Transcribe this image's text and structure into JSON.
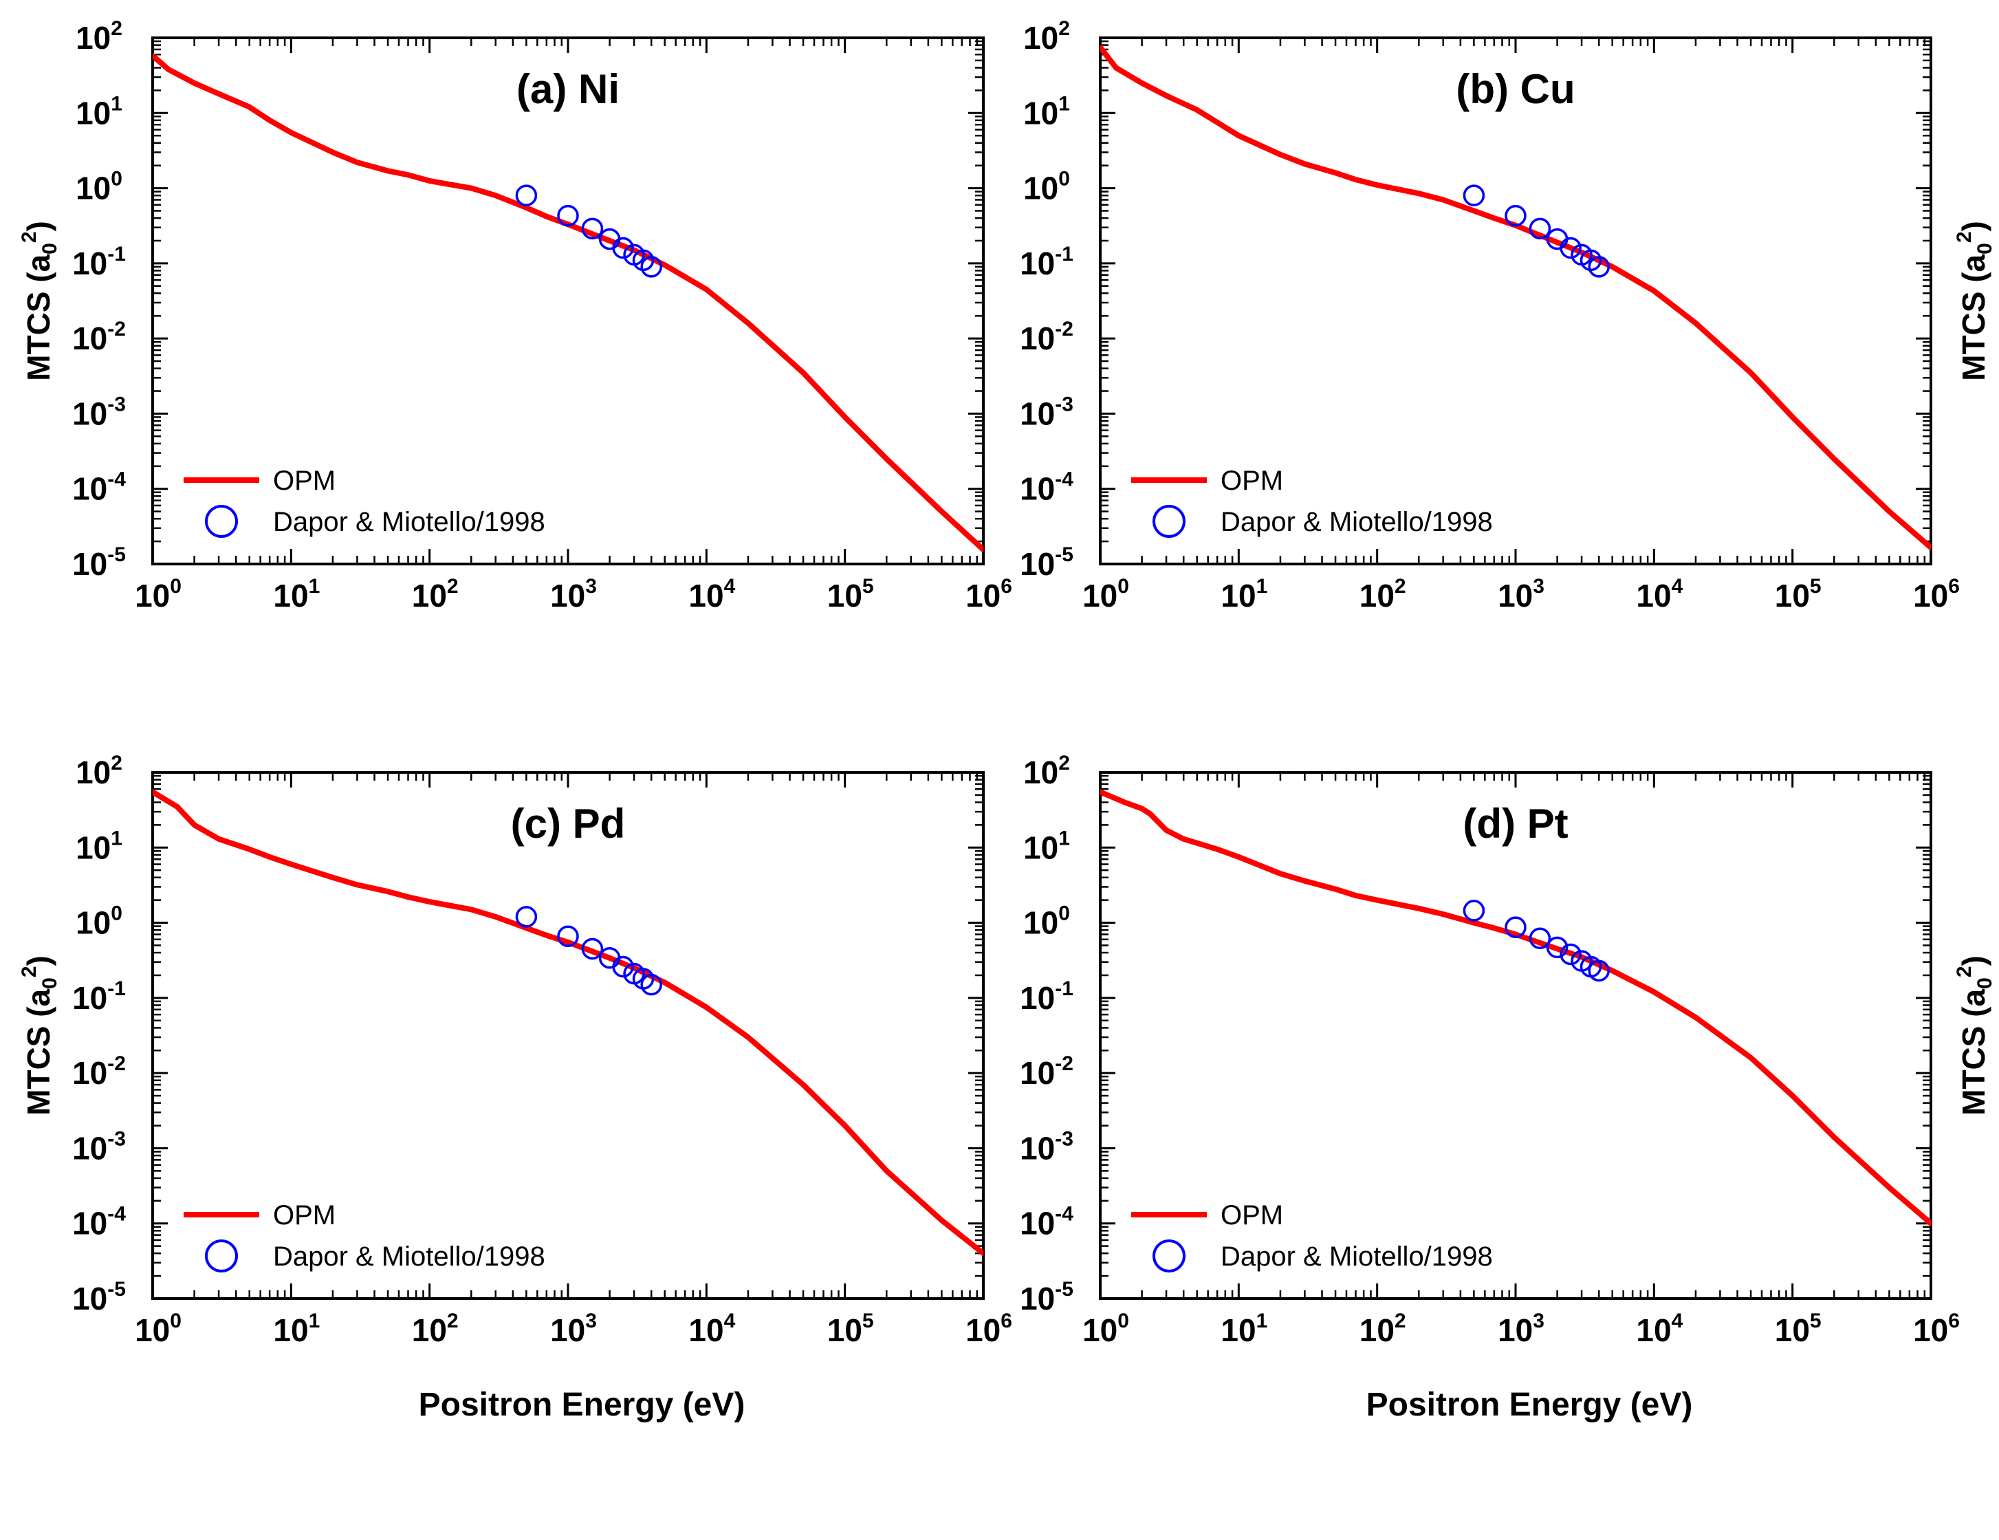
{
  "chart_data": [
    {
      "type": "line",
      "panel": "a",
      "title": "(a) Ni",
      "xlabel": "Positron Energy (eV)",
      "ylabel": "MTCS (a_0^2)",
      "xscale": "log",
      "yscale": "log",
      "xlim": [
        1,
        1000000
      ],
      "ylim": [
        1e-05,
        100
      ],
      "show_xlabel": false,
      "ylabel_side": "left",
      "legend_placement": "lower-left",
      "series": [
        {
          "name": "OPM",
          "style": "line",
          "color": "#ff0000",
          "x": [
            1,
            1.3,
            2,
            3,
            5,
            7,
            10,
            20,
            30,
            50,
            70,
            100,
            200,
            300,
            500,
            700,
            1000,
            2000,
            3000,
            5000,
            10000,
            20000,
            50000,
            100000,
            200000,
            500000,
            1000000
          ],
          "y": [
            58,
            38,
            25,
            18,
            12,
            8,
            5.5,
            3,
            2.2,
            1.7,
            1.5,
            1.25,
            1.0,
            0.8,
            0.55,
            0.42,
            0.33,
            0.2,
            0.15,
            0.095,
            0.045,
            0.016,
            0.0035,
            0.0009,
            0.00025,
            5e-05,
            1.55e-05
          ]
        },
        {
          "name": "Dapor & Miotello/1998",
          "style": "circle",
          "color": "#0000ff",
          "x": [
            500,
            1000,
            1500,
            2000,
            2500,
            3000,
            3500,
            4000
          ],
          "y": [
            0.8,
            0.43,
            0.29,
            0.21,
            0.16,
            0.13,
            0.11,
            0.09
          ]
        }
      ]
    },
    {
      "type": "line",
      "panel": "b",
      "title": "(b) Cu",
      "xlabel": "Positron Energy (eV)",
      "ylabel": "MTCS (a_0^2)",
      "xscale": "log",
      "yscale": "log",
      "xlim": [
        1,
        1000000
      ],
      "ylim": [
        1e-05,
        100
      ],
      "show_xlabel": false,
      "ylabel_side": "right",
      "legend_placement": "lower-left",
      "series": [
        {
          "name": "OPM",
          "style": "line",
          "color": "#ff0000",
          "x": [
            1,
            1.3,
            2,
            3,
            5,
            7,
            10,
            20,
            30,
            50,
            70,
            100,
            200,
            300,
            500,
            700,
            1000,
            2000,
            3000,
            5000,
            10000,
            20000,
            50000,
            100000,
            200000,
            500000,
            1000000
          ],
          "y": [
            75,
            40,
            25,
            17,
            11,
            7.5,
            5.0,
            2.8,
            2.1,
            1.6,
            1.3,
            1.1,
            0.85,
            0.7,
            0.5,
            0.4,
            0.32,
            0.19,
            0.14,
            0.09,
            0.043,
            0.016,
            0.0035,
            0.0009,
            0.00025,
            5e-05,
            1.65e-05
          ]
        },
        {
          "name": "Dapor & Miotello/1998",
          "style": "circle",
          "color": "#0000ff",
          "x": [
            500,
            1000,
            1500,
            2000,
            2500,
            3000,
            3500,
            4000
          ],
          "y": [
            0.8,
            0.43,
            0.29,
            0.21,
            0.16,
            0.13,
            0.11,
            0.09
          ]
        }
      ]
    },
    {
      "type": "line",
      "panel": "c",
      "title": "(c) Pd",
      "xlabel": "Positron Energy (eV)",
      "ylabel": "MTCS (a_0^2)",
      "xscale": "log",
      "yscale": "log",
      "xlim": [
        1,
        1000000
      ],
      "ylim": [
        1e-05,
        100
      ],
      "show_xlabel": true,
      "ylabel_side": "left",
      "legend_placement": "lower-left",
      "series": [
        {
          "name": "OPM",
          "style": "line",
          "color": "#ff0000",
          "x": [
            1,
            1.5,
            2,
            3,
            5,
            7,
            10,
            20,
            30,
            50,
            70,
            100,
            200,
            300,
            500,
            700,
            1000,
            2000,
            3000,
            5000,
            10000,
            20000,
            50000,
            100000,
            200000,
            500000,
            1000000
          ],
          "y": [
            55,
            35,
            20,
            13,
            9.5,
            7.5,
            6.0,
            4.0,
            3.2,
            2.6,
            2.2,
            1.9,
            1.5,
            1.2,
            0.85,
            0.68,
            0.55,
            0.34,
            0.25,
            0.16,
            0.075,
            0.03,
            0.007,
            0.002,
            0.0005,
            0.00011,
            4e-05
          ]
        },
        {
          "name": "Dapor & Miotello/1998",
          "style": "circle",
          "color": "#0000ff",
          "x": [
            500,
            1000,
            1500,
            2000,
            2500,
            3000,
            3500,
            4000
          ],
          "y": [
            1.2,
            0.66,
            0.45,
            0.34,
            0.26,
            0.21,
            0.18,
            0.15
          ]
        }
      ]
    },
    {
      "type": "line",
      "panel": "d",
      "title": "(d) Pt",
      "xlabel": "Positron Energy (eV)",
      "ylabel": "MTCS (a_0^2)",
      "xscale": "log",
      "yscale": "log",
      "xlim": [
        1,
        1000000
      ],
      "ylim": [
        1e-05,
        100
      ],
      "show_xlabel": true,
      "ylabel_side": "right",
      "legend_placement": "lower-left",
      "series": [
        {
          "name": "OPM",
          "style": "line",
          "color": "#ff0000",
          "x": [
            1,
            1.5,
            2,
            2.3,
            3,
            4,
            5,
            7,
            10,
            20,
            30,
            50,
            70,
            100,
            200,
            300,
            500,
            700,
            1000,
            2000,
            3000,
            5000,
            10000,
            20000,
            50000,
            100000,
            200000,
            500000,
            1000000
          ],
          "y": [
            55,
            40,
            33,
            28,
            17,
            13,
            11.5,
            9.5,
            7.5,
            4.5,
            3.6,
            2.8,
            2.3,
            2.0,
            1.55,
            1.3,
            1.0,
            0.85,
            0.7,
            0.45,
            0.35,
            0.23,
            0.12,
            0.055,
            0.016,
            0.005,
            0.0014,
            0.0003,
            0.0001
          ]
        },
        {
          "name": "Dapor & Miotello/1998",
          "style": "circle",
          "color": "#0000ff",
          "x": [
            500,
            1000,
            1500,
            2000,
            2500,
            3000,
            3500,
            4000
          ],
          "y": [
            1.45,
            0.87,
            0.62,
            0.47,
            0.38,
            0.31,
            0.26,
            0.23
          ]
        }
      ]
    }
  ]
}
